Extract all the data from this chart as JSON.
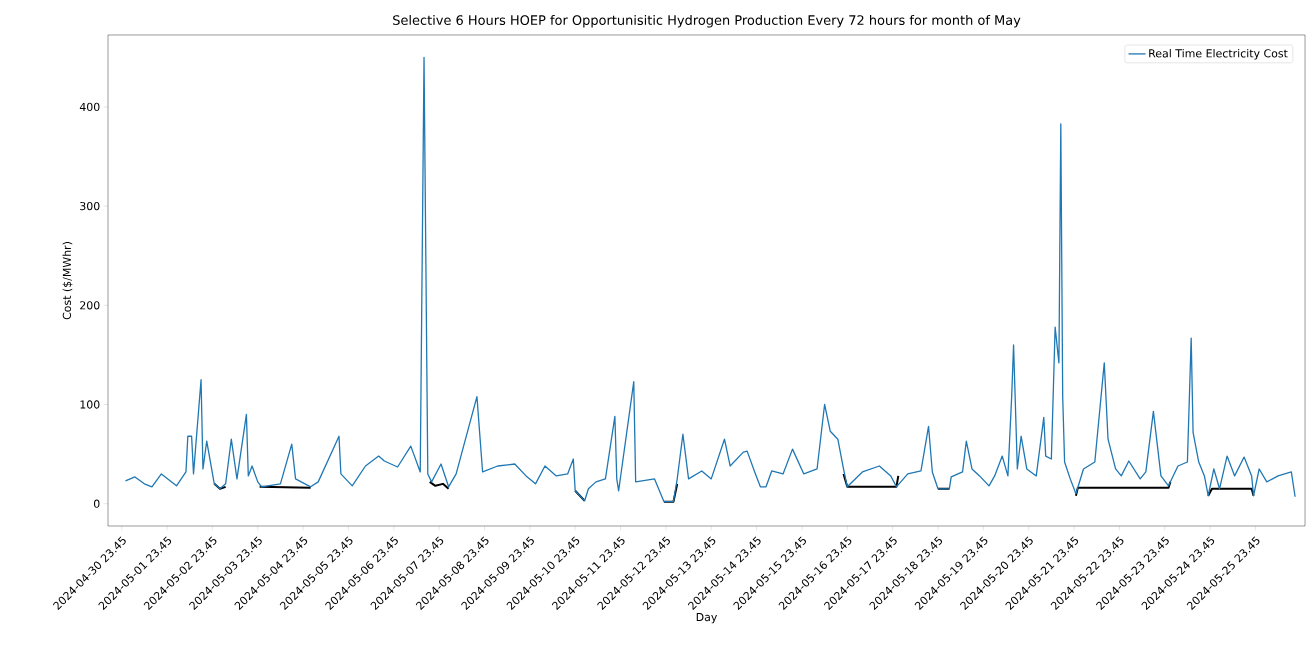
{
  "chart_data": {
    "type": "line",
    "title": "Selective 6 Hours HOEP for Opportunisitic Hydrogen Production Every 72 hours for month of May",
    "xlabel": "Day",
    "ylabel": "Cost ($/MWhr)",
    "legend": "top right",
    "xlim": [
      "2024-04-30T16:30",
      "2024-05-27T02:00"
    ],
    "ylim": [
      -22.5,
      472.5
    ],
    "yticks": [
      0,
      100,
      200,
      300,
      400
    ],
    "xticks": [
      {
        "value": "2024-04-30T23:45",
        "label": "2024-04-30 23.45"
      },
      {
        "value": "2024-05-01T23:45",
        "label": "2024-05-01 23.45"
      },
      {
        "value": "2024-05-02T23:45",
        "label": "2024-05-02 23.45"
      },
      {
        "value": "2024-05-03T23:45",
        "label": "2024-05-03 23.45"
      },
      {
        "value": "2024-05-04T23:45",
        "label": "2024-05-04 23.45"
      },
      {
        "value": "2024-05-05T23:45",
        "label": "2024-05-05 23.45"
      },
      {
        "value": "2024-05-06T23:45",
        "label": "2024-05-06 23.45"
      },
      {
        "value": "2024-05-07T23:45",
        "label": "2024-05-07 23.45"
      },
      {
        "value": "2024-05-08T23:45",
        "label": "2024-05-08 23.45"
      },
      {
        "value": "2024-05-09T23:45",
        "label": "2024-05-09 23.45"
      },
      {
        "value": "2024-05-10T23:45",
        "label": "2024-05-10 23.45"
      },
      {
        "value": "2024-05-11T23:45",
        "label": "2024-05-11 23.45"
      },
      {
        "value": "2024-05-12T23:45",
        "label": "2024-05-12 23.45"
      },
      {
        "value": "2024-05-13T23:45",
        "label": "2024-05-13 23.45"
      },
      {
        "value": "2024-05-14T23:45",
        "label": "2024-05-14 23.45"
      },
      {
        "value": "2024-05-15T23:45",
        "label": "2024-05-15 23.45"
      },
      {
        "value": "2024-05-16T23:45",
        "label": "2024-05-16 23.45"
      },
      {
        "value": "2024-05-17T23:45",
        "label": "2024-05-17 23.45"
      },
      {
        "value": "2024-05-18T23:45",
        "label": "2024-05-18 23.45"
      },
      {
        "value": "2024-05-19T23:45",
        "label": "2024-05-19 23.45"
      },
      {
        "value": "2024-05-20T23:45",
        "label": "2024-05-20 23.45"
      },
      {
        "value": "2024-05-21T23:45",
        "label": "2024-05-21 23.45"
      },
      {
        "value": "2024-05-22T23:45",
        "label": "2024-05-22 23.45"
      },
      {
        "value": "2024-05-23T23:45",
        "label": "2024-05-23 23.45"
      },
      {
        "value": "2024-05-24T23:45",
        "label": "2024-05-24 23.45"
      },
      {
        "value": "2024-05-25T23:45",
        "label": "2024-05-25 23.45"
      }
    ],
    "series": [
      {
        "name": "Real Time Electricity Cost",
        "color": "#1f77b4",
        "x": [
          "2024-05-01T01:45",
          "2024-05-01T06:45",
          "2024-05-01T11:45",
          "2024-05-01T15:45",
          "2024-05-01T20:45",
          "2024-05-02T04:45",
          "2024-05-02T09:45",
          "2024-05-02T10:45",
          "2024-05-02T12:45",
          "2024-05-02T13:45",
          "2024-05-02T17:45",
          "2024-05-02T18:45",
          "2024-05-02T20:45",
          "2024-05-03T00:45",
          "2024-05-03T03:45",
          "2024-05-03T06:45",
          "2024-05-03T09:45",
          "2024-05-03T12:45",
          "2024-05-03T17:45",
          "2024-05-03T18:45",
          "2024-05-03T20:45",
          "2024-05-03T23:45",
          "2024-05-04T01:45",
          "2024-05-04T11:45",
          "2024-05-04T17:45",
          "2024-05-04T19:45",
          "2024-05-05T03:45",
          "2024-05-05T07:45",
          "2024-05-05T18:45",
          "2024-05-05T19:45",
          "2024-05-06T01:45",
          "2024-05-06T08:45",
          "2024-05-06T15:45",
          "2024-05-06T18:45",
          "2024-05-07T01:45",
          "2024-05-07T08:45",
          "2024-05-07T13:45",
          "2024-05-07T15:45",
          "2024-05-07T16:45",
          "2024-05-07T17:45",
          "2024-05-07T19:45",
          "2024-05-08T00:45",
          "2024-05-08T04:45",
          "2024-05-08T08:45",
          "2024-05-08T19:45",
          "2024-05-08T22:45",
          "2024-05-09T06:45",
          "2024-05-09T15:45",
          "2024-05-09T21:45",
          "2024-05-10T02:45",
          "2024-05-10T07:45",
          "2024-05-10T13:45",
          "2024-05-10T19:45",
          "2024-05-10T22:45",
          "2024-05-10T23:45",
          "2024-05-11T04:45",
          "2024-05-11T06:45",
          "2024-05-11T10:45",
          "2024-05-11T15:45",
          "2024-05-11T20:45",
          "2024-05-11T21:45",
          "2024-05-11T22:45",
          "2024-05-12T06:45",
          "2024-05-12T07:45",
          "2024-05-12T17:45",
          "2024-05-12T22:45",
          "2024-05-13T03:45",
          "2024-05-13T05:45",
          "2024-05-13T08:45",
          "2024-05-13T11:45",
          "2024-05-13T18:45",
          "2024-05-13T23:45",
          "2024-05-14T06:45",
          "2024-05-14T09:45",
          "2024-05-14T16:45",
          "2024-05-14T18:45",
          "2024-05-14T22:45",
          "2024-05-15T01:45",
          "2024-05-15T04:45",
          "2024-05-15T07:45",
          "2024-05-15T13:45",
          "2024-05-15T18:45",
          "2024-05-16T00:45",
          "2024-05-16T07:45",
          "2024-05-16T11:45",
          "2024-05-16T14:45",
          "2024-05-16T18:45",
          "2024-05-16T21:45",
          "2024-05-16T23:45",
          "2024-05-17T07:45",
          "2024-05-17T16:45",
          "2024-05-17T22:45",
          "2024-05-18T01:45",
          "2024-05-18T07:45",
          "2024-05-18T14:45",
          "2024-05-18T18:45",
          "2024-05-18T20:45",
          "2024-05-18T23:45",
          "2024-05-19T05:45",
          "2024-05-19T06:45",
          "2024-05-19T12:45",
          "2024-05-19T14:45",
          "2024-05-19T17:45",
          "2024-05-19T21:45",
          "2024-05-20T02:45",
          "2024-05-20T05:45",
          "2024-05-20T09:45",
          "2024-05-20T12:45",
          "2024-05-20T14:45",
          "2024-05-20T15:45",
          "2024-05-20T17:45",
          "2024-05-20T19:45",
          "2024-05-20T22:45",
          "2024-05-21T03:45",
          "2024-05-21T07:45",
          "2024-05-21T08:45",
          "2024-05-21T11:45",
          "2024-05-21T13:45",
          "2024-05-21T15:45",
          "2024-05-21T16:45",
          "2024-05-21T17:45",
          "2024-05-21T18:45",
          "2024-05-21T21:45",
          "2024-05-22T00:45",
          "2024-05-22T04:45",
          "2024-05-22T10:45",
          "2024-05-22T15:45",
          "2024-05-22T17:45",
          "2024-05-22T21:45",
          "2024-05-23T00:45",
          "2024-05-23T04:45",
          "2024-05-23T10:45",
          "2024-05-23T13:45",
          "2024-05-23T17:45",
          "2024-05-23T21:45",
          "2024-05-24T01:45",
          "2024-05-24T06:45",
          "2024-05-24T11:45",
          "2024-05-24T13:45",
          "2024-05-24T14:45",
          "2024-05-24T17:45",
          "2024-05-24T20:45",
          "2024-05-24T22:45",
          "2024-05-25T01:45",
          "2024-05-25T04:45",
          "2024-05-25T08:45",
          "2024-05-25T12:45",
          "2024-05-25T17:45",
          "2024-05-25T21:45",
          "2024-05-25T22:45",
          "2024-05-26T01:45",
          "2024-05-26T05:45",
          "2024-05-26T11:45",
          "2024-05-26T18:45",
          "2024-05-26T20:45"
        ],
        "values": [
          23,
          27,
          20,
          17,
          30,
          18,
          32,
          68,
          68,
          30,
          125,
          35,
          63,
          20,
          15,
          20,
          65,
          25,
          90,
          28,
          38,
          22,
          17,
          20,
          60,
          25,
          17,
          22,
          68,
          30,
          18,
          38,
          48,
          43,
          37,
          58,
          32,
          450,
          238,
          30,
          22,
          40,
          17,
          30,
          108,
          32,
          38,
          40,
          28,
          20,
          38,
          28,
          30,
          45,
          13,
          3,
          15,
          22,
          25,
          88,
          25,
          13,
          123,
          22,
          25,
          2,
          2,
          25,
          70,
          25,
          33,
          25,
          65,
          38,
          52,
          53,
          32,
          17,
          17,
          33,
          30,
          55,
          30,
          35,
          100,
          73,
          65,
          35,
          17,
          32,
          38,
          28,
          17,
          30,
          33,
          78,
          32,
          15,
          15,
          27,
          32,
          63,
          35,
          28,
          18,
          28,
          48,
          28,
          108,
          160,
          35,
          68,
          35,
          28,
          87,
          48,
          45,
          178,
          142,
          383,
          108,
          42,
          25,
          10,
          35,
          42,
          142,
          65,
          35,
          28,
          43,
          25,
          32,
          93,
          28,
          18,
          38,
          42,
          167,
          72,
          42,
          28,
          8,
          35,
          15,
          48,
          28,
          47,
          28,
          8,
          35,
          22,
          28,
          32,
          7
        ]
      },
      {
        "color": "#000000",
        "x": [
          "2024-05-03T00:45",
          "2024-05-03T03:45",
          "2024-05-03T06:45",
          "2024-05-03T12:00",
          "2024-05-04T00:45",
          "2024-05-05T03:45",
          "2024-05-06T12:00",
          "2024-05-07T18:45",
          "2024-05-07T21:45",
          "2024-05-08T01:45",
          "2024-05-08T04:45",
          "2024-05-09T12:00",
          "2024-05-10T23:45",
          "2024-05-11T04:45",
          "2024-05-12T12:00",
          "2024-05-12T22:45",
          "2024-05-13T03:45",
          "2024-05-13T05:45",
          "2024-05-15T12:00",
          "2024-05-16T21:45",
          "2024-05-16T23:45",
          "2024-05-18T01:45",
          "2024-05-18T02:45",
          "2024-05-18T12:00",
          "2024-05-18T23:45",
          "2024-05-19T05:45",
          "2024-05-20T12:00",
          "2024-05-22T00:45",
          "2024-05-22T01:45",
          "2024-05-24T01:45",
          "2024-05-24T02:45",
          "2024-05-24T12:00",
          "2024-05-24T22:45",
          "2024-05-25T00:45",
          "2024-05-25T21:45",
          "2024-05-25T22:45"
        ],
        "values": [
          20,
          15,
          17,
          null,
          17,
          16,
          null,
          22,
          18,
          20,
          15,
          null,
          13,
          3,
          null,
          2,
          2,
          20,
          null,
          30,
          17,
          17,
          28,
          null,
          15,
          15,
          null,
          8,
          16,
          16,
          22,
          null,
          8,
          15,
          15,
          8
        ]
      }
    ]
  }
}
